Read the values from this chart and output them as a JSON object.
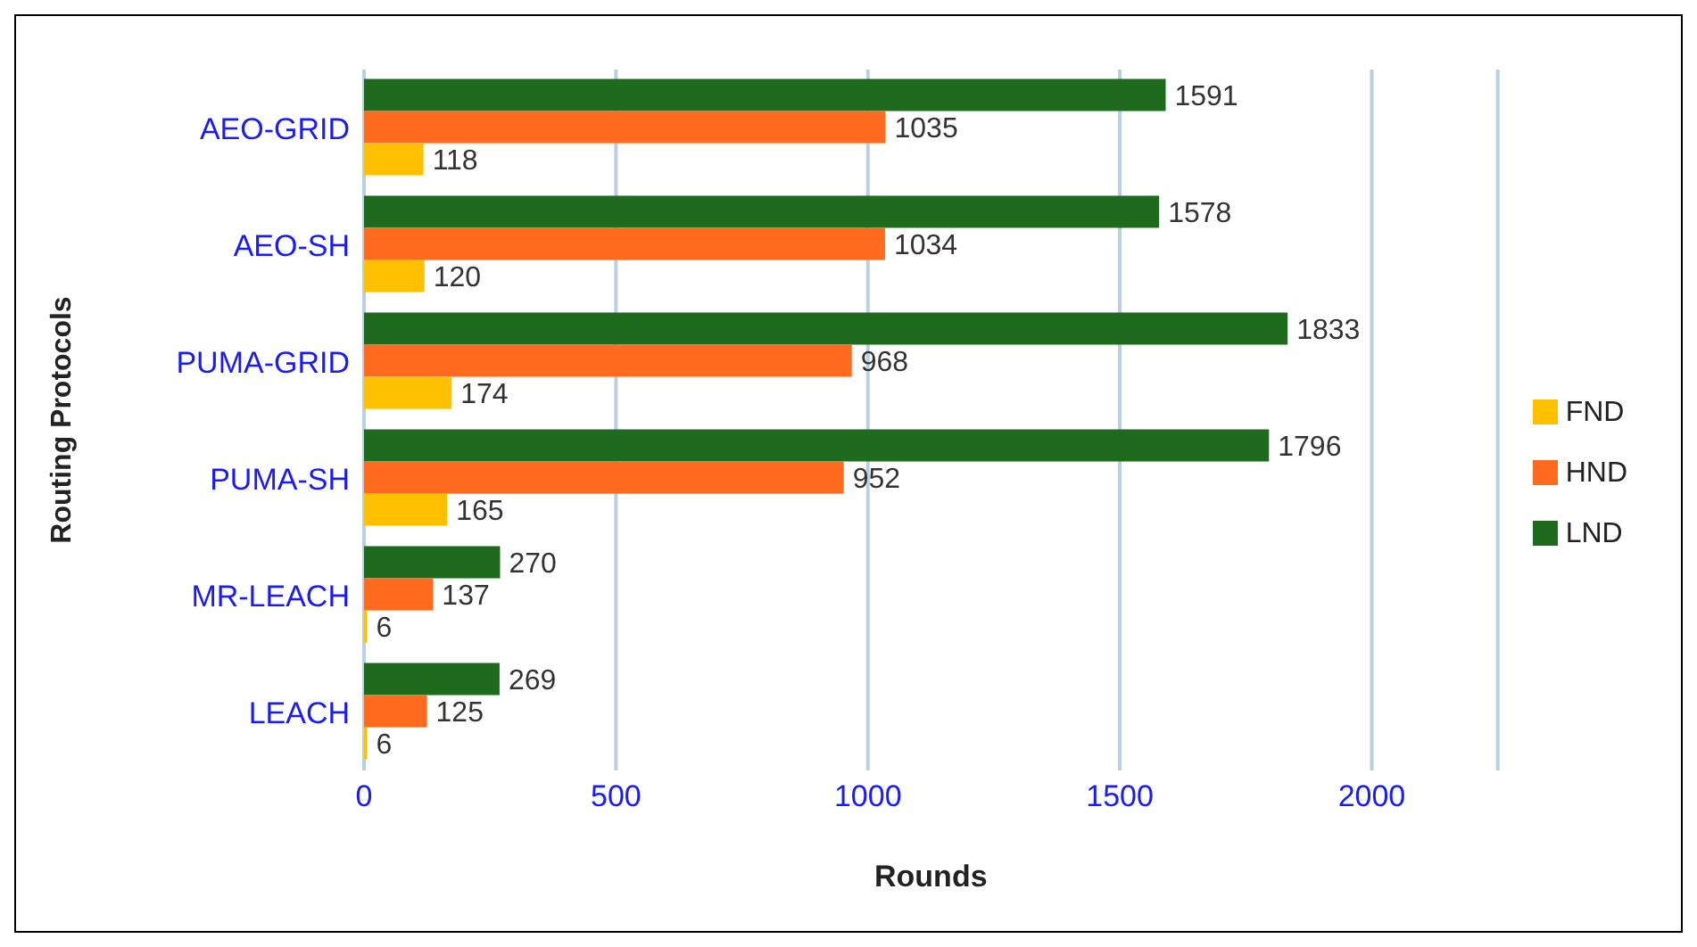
{
  "chart_data": {
    "type": "bar",
    "orientation": "horizontal",
    "xlabel": "Rounds",
    "ylabel": "Routing Protocols",
    "categories": [
      "AEO-GRID",
      "AEO-SH",
      "PUMA-GRID",
      "PUMA-SH",
      "MR-LEACH",
      "LEACH"
    ],
    "series": [
      {
        "name": "LND",
        "color": "#1e6b1e",
        "values": [
          1591,
          1578,
          1833,
          1796,
          270,
          269
        ]
      },
      {
        "name": "HND",
        "color": "#ff6a1f",
        "values": [
          1035,
          1034,
          968,
          952,
          137,
          125
        ]
      },
      {
        "name": "FND",
        "color": "#ffc000",
        "values": [
          118,
          120,
          174,
          165,
          6,
          6
        ]
      }
    ],
    "xlim": [
      0,
      2250
    ],
    "xticks": [
      0,
      500,
      1000,
      1500,
      2000
    ],
    "grid": "x",
    "legend": "right",
    "data_labels": true
  }
}
